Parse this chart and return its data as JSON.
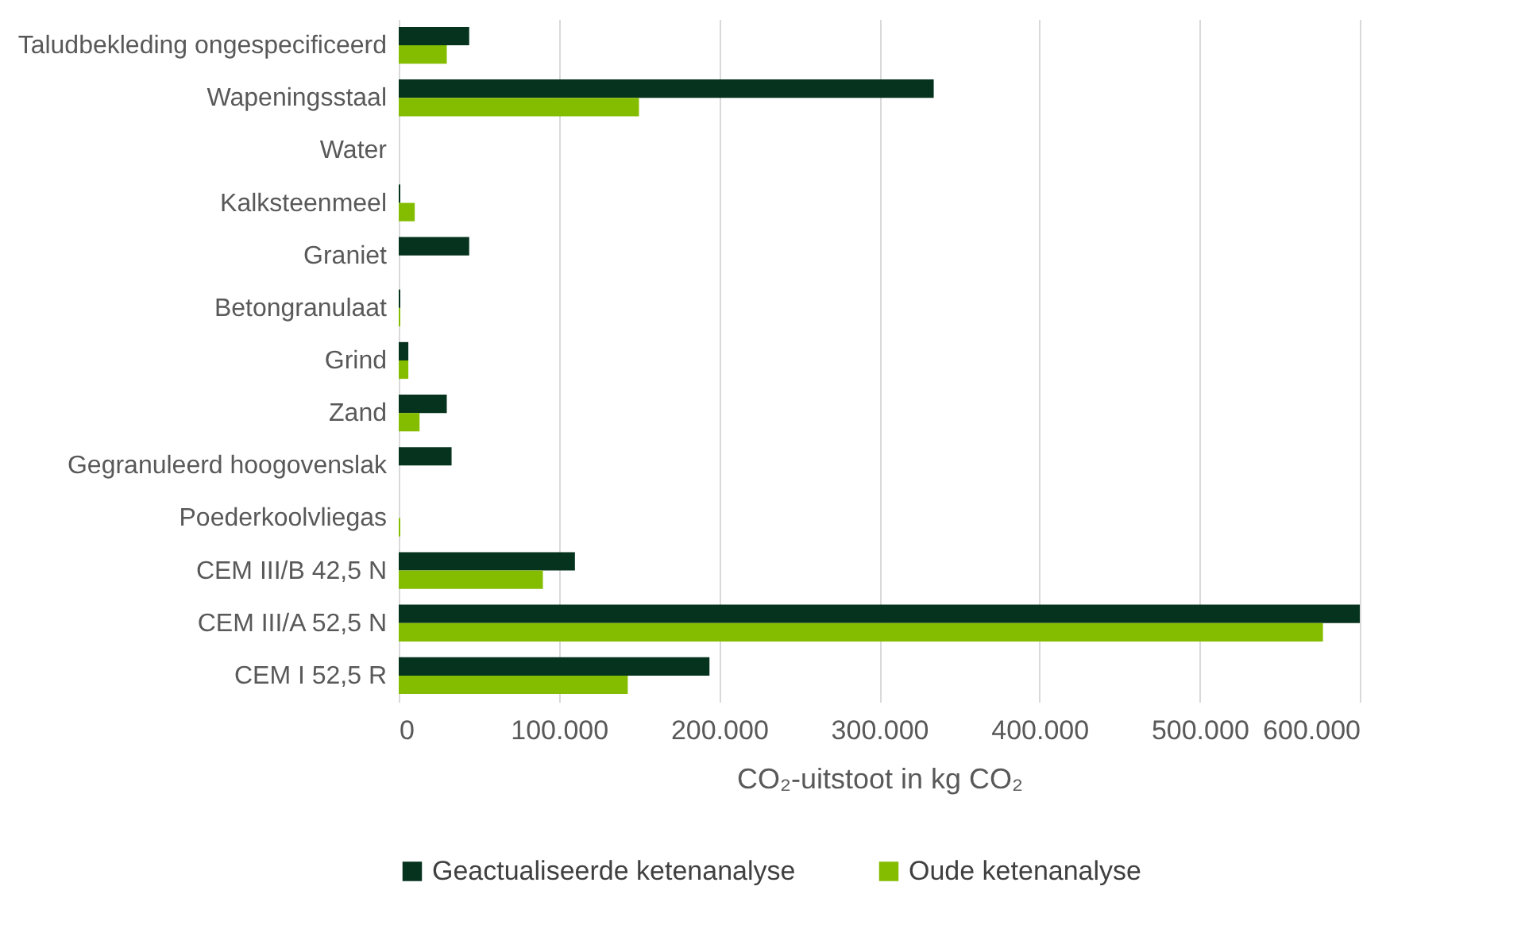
{
  "chart_data": {
    "type": "bar",
    "orientation": "horizontal",
    "xlabel": "CO₂-uitstoot in kg CO₂",
    "categories": [
      "Taludbekleding ongespecificeerd",
      "Wapeningsstaal",
      "Water",
      "Kalksteenmeel",
      "Graniet",
      "Betongranulaat",
      "Grind",
      "Zand",
      "Gegranuleerd hoogovenslak",
      "Poederkoolvliegas",
      "CEM III/B 42,5 N",
      "CEM III/A 52,5 N",
      "CEM I 52,5 R"
    ],
    "series": [
      {
        "name": "Geactualiseerde ketenanalyse",
        "color": "#06331e",
        "values": [
          44000,
          334000,
          0,
          1000,
          44000,
          1000,
          6000,
          30000,
          33000,
          0,
          110000,
          600000,
          194000
        ]
      },
      {
        "name": "Oude ketenanalyse",
        "color": "#84bd00",
        "values": [
          30000,
          150000,
          0,
          10000,
          0,
          1000,
          6000,
          13000,
          0,
          1000,
          90000,
          577000,
          143000
        ]
      }
    ],
    "xlim": [
      0,
      600000
    ],
    "xticks": [
      {
        "value": 0,
        "label": "0"
      },
      {
        "value": 100000,
        "label": "100.000"
      },
      {
        "value": 200000,
        "label": "200.000"
      },
      {
        "value": 300000,
        "label": "300.000"
      },
      {
        "value": 400000,
        "label": "400.000"
      },
      {
        "value": 500000,
        "label": "500.000"
      },
      {
        "value": 600000,
        "label": "600.000"
      }
    ],
    "grid": "x",
    "legend": "bottom"
  }
}
